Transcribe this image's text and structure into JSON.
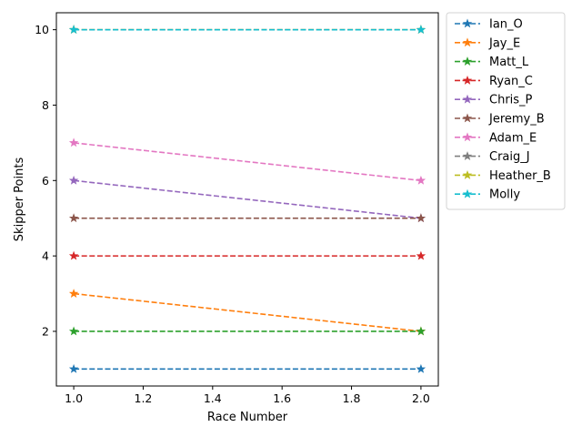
{
  "chart_data": {
    "type": "line",
    "xlabel": "Race Number",
    "ylabel": "Skipper Points",
    "xlim": [
      0.95,
      2.05
    ],
    "ylim": [
      0.55,
      10.45
    ],
    "xticks": [
      1.0,
      1.2,
      1.4,
      1.6,
      1.8,
      2.0
    ],
    "xtick_labels": [
      "1.0",
      "1.2",
      "1.4",
      "1.6",
      "1.8",
      "2.0"
    ],
    "yticks": [
      2,
      4,
      6,
      8,
      10
    ],
    "ytick_labels": [
      "2",
      "4",
      "6",
      "8",
      "10"
    ],
    "x": [
      1,
      2
    ],
    "grid": false,
    "legend_placement": "outside-upper-right",
    "line_style": "dashed",
    "marker": "star",
    "series": [
      {
        "name": "Ian_O",
        "values": [
          1,
          1
        ],
        "color": "#1f77b4"
      },
      {
        "name": "Jay_E",
        "values": [
          3,
          2
        ],
        "color": "#ff7f0e"
      },
      {
        "name": "Matt_L",
        "values": [
          2,
          2
        ],
        "color": "#2ca02c"
      },
      {
        "name": "Ryan_C",
        "values": [
          4,
          4
        ],
        "color": "#d62728"
      },
      {
        "name": "Chris_P",
        "values": [
          6,
          5
        ],
        "color": "#9467bd"
      },
      {
        "name": "Jeremy_B",
        "values": [
          5,
          5
        ],
        "color": "#8c564b"
      },
      {
        "name": "Adam_E",
        "values": [
          7,
          6
        ],
        "color": "#e377c2"
      },
      {
        "name": "Craig_J",
        "values": [
          10,
          10
        ],
        "color": "#7f7f7f"
      },
      {
        "name": "Heather_B",
        "values": [
          10,
          10
        ],
        "color": "#bcbd22"
      },
      {
        "name": "Molly",
        "values": [
          10,
          10
        ],
        "color": "#17becf"
      }
    ]
  }
}
